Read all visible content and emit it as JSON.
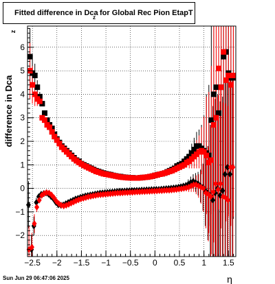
{
  "title": {
    "main": "Fitted difference in Dca",
    "sub": "z",
    "rest": " for Global Rec Pion EtapT"
  },
  "datestamp": "Sun Jun 29 06:47:06 2025",
  "chart_data": {
    "type": "scatter",
    "ylabel": "difference in Dca",
    "ylabel_sub": "z",
    "xlabel": "η",
    "xlim": [
      -2.6,
      1.65
    ],
    "ylim": [
      -2.9,
      6.9
    ],
    "grid": true,
    "x_ticks": [
      -2.5,
      -2,
      -1.5,
      -1,
      -0.5,
      0,
      0.5,
      1,
      1.5
    ],
    "x_tick_labels": [
      "−2.5",
      "−2",
      "−1.5",
      "−1",
      "−0.5",
      "0",
      "0.5",
      "1",
      "1.5"
    ],
    "y_ticks": [
      -2,
      -1,
      0,
      1,
      2,
      3,
      4,
      5,
      6
    ],
    "y_tick_labels": [
      "−2",
      "−1",
      "0",
      "1",
      "2",
      "3",
      "4",
      "5",
      "6"
    ],
    "series": [
      {
        "marker": "square",
        "color": "#000000",
        "x": [
          -2.55,
          -2.5,
          -2.45,
          -2.4,
          -2.35,
          -2.3,
          -2.25,
          -2.2,
          -2.15,
          -2.1,
          -2.05,
          -2.0,
          -1.95,
          -1.9,
          -1.85,
          -1.8,
          -1.75,
          -1.7,
          -1.65,
          -1.6,
          -1.55,
          -1.5,
          -1.45,
          -1.4,
          -1.35,
          -1.3,
          -1.25,
          -1.2,
          -1.15,
          -1.1,
          -1.05,
          -1.0,
          -0.95,
          -0.9,
          -0.85,
          -0.8,
          -0.75,
          -0.7,
          -0.65,
          -0.6,
          -0.55,
          -0.5,
          -0.45,
          -0.4,
          -0.35,
          -0.3,
          -0.25,
          -0.2,
          -0.15,
          -0.1,
          -0.05,
          0.0,
          0.05,
          0.1,
          0.15,
          0.2,
          0.25,
          0.3,
          0.35,
          0.4,
          0.45,
          0.5,
          0.55,
          0.6,
          0.65,
          0.7,
          0.75,
          0.8,
          0.85,
          0.9,
          0.95,
          1.0,
          1.05,
          1.1,
          1.15,
          1.2,
          1.25,
          1.3,
          1.35,
          1.4,
          1.45,
          1.5,
          1.55,
          1.6
        ],
        "y": [
          5.6,
          4.9,
          4.8,
          4.3,
          3.9,
          3.6,
          3.2,
          2.9,
          2.7,
          2.55,
          2.3,
          2.1,
          1.95,
          1.8,
          1.7,
          1.6,
          1.5,
          1.4,
          1.3,
          1.2,
          1.15,
          1.05,
          1.0,
          0.95,
          0.9,
          0.85,
          0.8,
          0.75,
          0.72,
          0.68,
          0.65,
          0.62,
          0.6,
          0.58,
          0.55,
          0.53,
          0.51,
          0.5,
          0.48,
          0.47,
          0.46,
          0.45,
          0.45,
          0.44,
          0.44,
          0.45,
          0.46,
          0.47,
          0.48,
          0.5,
          0.52,
          0.55,
          0.58,
          0.6,
          0.62,
          0.65,
          0.7,
          0.75,
          0.8,
          0.85,
          0.95,
          1.0,
          1.05,
          1.15,
          1.25,
          1.35,
          1.5,
          1.65,
          1.8,
          1.8,
          1.7,
          1.6,
          1.5,
          1.4,
          2.9,
          4.0,
          4.3,
          3.2,
          4.3,
          5.6,
          5.8,
          4.9,
          4.7,
          4.7
        ],
        "err": [
          1.2,
          0.8,
          0.5,
          0.3,
          0.2,
          0.1,
          0.05,
          0.04,
          0.03,
          0.03,
          0.03,
          0.03,
          0.03,
          0.03,
          0.03,
          0.03,
          0.03,
          0.03,
          0.03,
          0.03,
          0.03,
          0.03,
          0.03,
          0.03,
          0.03,
          0.03,
          0.03,
          0.03,
          0.03,
          0.03,
          0.03,
          0.03,
          0.03,
          0.03,
          0.03,
          0.03,
          0.03,
          0.03,
          0.03,
          0.03,
          0.03,
          0.03,
          0.03,
          0.03,
          0.03,
          0.03,
          0.03,
          0.03,
          0.03,
          0.03,
          0.03,
          0.03,
          0.03,
          0.03,
          0.03,
          0.03,
          0.03,
          0.03,
          0.03,
          0.05,
          0.05,
          0.05,
          0.1,
          0.15,
          0.2,
          0.3,
          0.4,
          0.5,
          0.6,
          0.7,
          1.0,
          1.5,
          2.5,
          3.0,
          4.0,
          5.0,
          6.0,
          6.0,
          6.0,
          6.0,
          6.0,
          6.0,
          6.0,
          6.0
        ]
      },
      {
        "marker": "square",
        "color": "#ff0000",
        "x": [
          -2.55,
          -2.5,
          -2.45,
          -2.4,
          -2.35,
          -2.3,
          -2.25,
          -2.2,
          -2.15,
          -2.1,
          -2.05,
          -2.0,
          -1.95,
          -1.9,
          -1.85,
          -1.8,
          -1.75,
          -1.7,
          -1.65,
          -1.6,
          -1.55,
          -1.5,
          -1.45,
          -1.4,
          -1.35,
          -1.3,
          -1.25,
          -1.2,
          -1.15,
          -1.1,
          -1.05,
          -1.0,
          -0.95,
          -0.9,
          -0.85,
          -0.8,
          -0.75,
          -0.7,
          -0.65,
          -0.6,
          -0.55,
          -0.5,
          -0.45,
          -0.4,
          -0.35,
          -0.3,
          -0.25,
          -0.2,
          -0.15,
          -0.1,
          -0.05,
          0.0,
          0.05,
          0.1,
          0.15,
          0.2,
          0.25,
          0.3,
          0.35,
          0.4,
          0.45,
          0.5,
          0.55,
          0.6,
          0.65,
          0.7,
          0.75,
          0.8,
          0.85,
          0.9,
          0.95,
          1.0,
          1.05,
          1.1,
          1.15,
          1.2,
          1.25,
          1.3,
          1.35,
          1.4,
          1.45,
          1.5,
          1.55,
          1.6
        ],
        "y": [
          5.0,
          4.4,
          4.0,
          3.8,
          3.7,
          3.0,
          2.9,
          2.7,
          2.6,
          2.4,
          2.2,
          2.05,
          1.9,
          1.75,
          1.65,
          1.55,
          1.45,
          1.35,
          1.25,
          1.17,
          1.1,
          1.03,
          0.97,
          0.92,
          0.87,
          0.82,
          0.77,
          0.72,
          0.69,
          0.65,
          0.62,
          0.6,
          0.58,
          0.56,
          0.54,
          0.52,
          0.5,
          0.48,
          0.47,
          0.46,
          0.45,
          0.45,
          0.44,
          0.44,
          0.44,
          0.45,
          0.46,
          0.47,
          0.48,
          0.5,
          0.52,
          0.55,
          0.57,
          0.6,
          0.62,
          0.65,
          0.68,
          0.72,
          0.75,
          0.8,
          0.85,
          0.9,
          0.95,
          1.0,
          1.1,
          1.15,
          1.25,
          1.35,
          1.45,
          1.55,
          1.6,
          1.55,
          1.4,
          1.1,
          1.2,
          2.7,
          3.0,
          5.1,
          4.3,
          5.8,
          4.6,
          4.8,
          4.4,
          4.8
        ],
        "err": [
          1.2,
          0.8,
          0.5,
          0.3,
          0.2,
          0.1,
          0.05,
          0.04,
          0.03,
          0.03,
          0.03,
          0.03,
          0.03,
          0.03,
          0.03,
          0.03,
          0.03,
          0.03,
          0.03,
          0.03,
          0.03,
          0.03,
          0.03,
          0.03,
          0.03,
          0.03,
          0.03,
          0.03,
          0.03,
          0.03,
          0.03,
          0.03,
          0.03,
          0.03,
          0.03,
          0.03,
          0.03,
          0.03,
          0.03,
          0.03,
          0.03,
          0.03,
          0.03,
          0.03,
          0.03,
          0.03,
          0.03,
          0.03,
          0.03,
          0.03,
          0.03,
          0.03,
          0.03,
          0.03,
          0.03,
          0.03,
          0.03,
          0.03,
          0.03,
          0.05,
          0.05,
          0.05,
          0.1,
          0.15,
          0.2,
          0.3,
          0.4,
          0.5,
          0.6,
          0.7,
          1.0,
          1.5,
          2.5,
          3.0,
          4.0,
          5.0,
          6.0,
          6.0,
          6.0,
          6.0,
          6.0,
          6.0,
          6.0,
          6.0
        ]
      },
      {
        "marker": "diamond",
        "color": "#000000",
        "x": [
          -2.58,
          -2.52,
          -2.47,
          -2.42,
          -2.37,
          -2.32,
          -2.27,
          -2.22,
          -2.17,
          -2.12,
          -2.07,
          -2.02,
          -1.97,
          -1.92,
          -1.87,
          -1.82,
          -1.77,
          -1.72,
          -1.67,
          -1.62,
          -1.57,
          -1.52,
          -1.47,
          -1.42,
          -1.37,
          -1.32,
          -1.27,
          -1.22,
          -1.17,
          -1.12,
          -1.07,
          -1.02,
          -0.97,
          -0.92,
          -0.87,
          -0.82,
          -0.77,
          -0.72,
          -0.67,
          -0.62,
          -0.57,
          -0.52,
          -0.47,
          -0.42,
          -0.37,
          -0.32,
          -0.27,
          -0.22,
          -0.17,
          -0.12,
          -0.07,
          -0.02,
          0.03,
          0.08,
          0.13,
          0.18,
          0.23,
          0.28,
          0.33,
          0.38,
          0.43,
          0.48,
          0.53,
          0.58,
          0.63,
          0.68,
          0.73,
          0.78,
          0.83,
          0.88,
          0.93,
          0.98,
          1.03,
          1.08,
          1.13,
          1.18,
          1.23,
          1.28,
          1.33,
          1.38,
          1.43,
          1.48,
          1.53,
          1.58
        ],
        "y": [
          -0.7,
          -2.6,
          -1.6,
          -0.6,
          -0.35,
          -0.25,
          -0.22,
          -0.2,
          -0.25,
          -0.35,
          -0.45,
          -0.6,
          -0.7,
          -0.72,
          -0.7,
          -0.65,
          -0.6,
          -0.55,
          -0.5,
          -0.45,
          -0.42,
          -0.38,
          -0.35,
          -0.32,
          -0.3,
          -0.28,
          -0.26,
          -0.24,
          -0.22,
          -0.2,
          -0.19,
          -0.18,
          -0.17,
          -0.16,
          -0.15,
          -0.14,
          -0.13,
          -0.12,
          -0.12,
          -0.11,
          -0.1,
          -0.1,
          -0.09,
          -0.09,
          -0.08,
          -0.08,
          -0.07,
          -0.07,
          -0.06,
          -0.06,
          -0.05,
          -0.05,
          -0.04,
          -0.04,
          -0.03,
          -0.02,
          -0.01,
          0.0,
          0.01,
          0.02,
          0.03,
          0.05,
          0.07,
          0.1,
          0.12,
          0.18,
          0.25,
          0.3,
          0.25,
          0.2,
          0.1,
          0.05,
          -0.1,
          -0.2,
          -0.3,
          -0.5,
          -0.2,
          0.0,
          -0.3,
          -0.1,
          0.6,
          0.9,
          0.6,
          0.9
        ],
        "err": [
          1.0,
          0.6,
          0.4,
          0.2,
          0.1,
          0.05,
          0.03,
          0.03,
          0.03,
          0.03,
          0.03,
          0.03,
          0.03,
          0.03,
          0.03,
          0.03,
          0.03,
          0.03,
          0.03,
          0.03,
          0.03,
          0.03,
          0.03,
          0.03,
          0.03,
          0.03,
          0.03,
          0.03,
          0.03,
          0.03,
          0.03,
          0.03,
          0.03,
          0.03,
          0.03,
          0.03,
          0.03,
          0.03,
          0.03,
          0.03,
          0.03,
          0.03,
          0.03,
          0.03,
          0.03,
          0.03,
          0.03,
          0.03,
          0.03,
          0.03,
          0.03,
          0.03,
          0.03,
          0.03,
          0.03,
          0.03,
          0.03,
          0.03,
          0.03,
          0.04,
          0.05,
          0.05,
          0.08,
          0.1,
          0.15,
          0.2,
          0.25,
          0.3,
          0.4,
          0.5,
          0.7,
          1.0,
          1.5,
          2.0,
          3.0,
          4.0,
          4.0,
          4.0,
          4.0,
          4.0,
          4.0,
          4.0,
          4.0,
          4.0
        ]
      },
      {
        "marker": "diamond",
        "color": "#ff0000",
        "x": [
          -2.57,
          -2.51,
          -2.46,
          -2.41,
          -2.36,
          -2.31,
          -2.26,
          -2.21,
          -2.16,
          -2.11,
          -2.06,
          -2.01,
          -1.96,
          -1.91,
          -1.86,
          -1.81,
          -1.76,
          -1.71,
          -1.66,
          -1.61,
          -1.56,
          -1.51,
          -1.46,
          -1.41,
          -1.36,
          -1.31,
          -1.26,
          -1.21,
          -1.16,
          -1.11,
          -1.06,
          -1.01,
          -0.96,
          -0.91,
          -0.86,
          -0.81,
          -0.76,
          -0.71,
          -0.66,
          -0.61,
          -0.56,
          -0.51,
          -0.46,
          -0.41,
          -0.36,
          -0.31,
          -0.26,
          -0.21,
          -0.16,
          -0.11,
          -0.06,
          -0.01,
          0.04,
          0.09,
          0.14,
          0.19,
          0.24,
          0.29,
          0.34,
          0.39,
          0.44,
          0.49,
          0.54,
          0.59,
          0.64,
          0.69,
          0.74,
          0.79,
          0.84,
          0.89,
          0.94,
          0.99,
          1.04,
          1.09,
          1.14,
          1.19,
          1.24,
          1.29,
          1.34,
          1.39,
          1.44,
          1.49,
          1.54,
          1.59
        ],
        "y": [
          -2.6,
          -2.5,
          -1.5,
          -0.8,
          -0.5,
          -0.3,
          -0.22,
          -0.18,
          -0.2,
          -0.28,
          -0.4,
          -0.55,
          -0.65,
          -0.72,
          -0.75,
          -0.72,
          -0.68,
          -0.63,
          -0.58,
          -0.53,
          -0.49,
          -0.45,
          -0.42,
          -0.39,
          -0.36,
          -0.34,
          -0.32,
          -0.3,
          -0.28,
          -0.27,
          -0.26,
          -0.25,
          -0.24,
          -0.23,
          -0.22,
          -0.21,
          -0.2,
          -0.2,
          -0.19,
          -0.18,
          -0.18,
          -0.17,
          -0.17,
          -0.16,
          -0.15,
          -0.15,
          -0.14,
          -0.14,
          -0.13,
          -0.13,
          -0.12,
          -0.12,
          -0.11,
          -0.1,
          -0.1,
          -0.09,
          -0.08,
          -0.08,
          -0.07,
          -0.06,
          -0.05,
          -0.03,
          -0.02,
          0.0,
          0.02,
          0.05,
          0.1,
          0.15,
          0.15,
          0.1,
          0.05,
          0.0,
          -0.2,
          -0.25,
          -0.35,
          -0.15,
          0.2,
          -0.05,
          0.2,
          -0.35,
          -0.4,
          -0.5,
          0.9,
          0.9
        ],
        "err": [
          1.0,
          0.6,
          0.4,
          0.2,
          0.1,
          0.05,
          0.03,
          0.03,
          0.03,
          0.03,
          0.03,
          0.03,
          0.03,
          0.03,
          0.03,
          0.03,
          0.03,
          0.03,
          0.03,
          0.03,
          0.03,
          0.03,
          0.03,
          0.03,
          0.03,
          0.03,
          0.03,
          0.03,
          0.03,
          0.03,
          0.03,
          0.03,
          0.03,
          0.03,
          0.03,
          0.03,
          0.03,
          0.03,
          0.03,
          0.03,
          0.03,
          0.03,
          0.03,
          0.03,
          0.03,
          0.03,
          0.03,
          0.03,
          0.03,
          0.03,
          0.03,
          0.03,
          0.03,
          0.03,
          0.03,
          0.03,
          0.03,
          0.03,
          0.03,
          0.04,
          0.05,
          0.05,
          0.08,
          0.1,
          0.15,
          0.2,
          0.25,
          0.3,
          0.4,
          0.5,
          0.7,
          1.0,
          1.5,
          2.0,
          3.0,
          4.0,
          4.0,
          4.0,
          4.0,
          4.0,
          4.0,
          4.0,
          4.0,
          4.0
        ]
      }
    ]
  }
}
